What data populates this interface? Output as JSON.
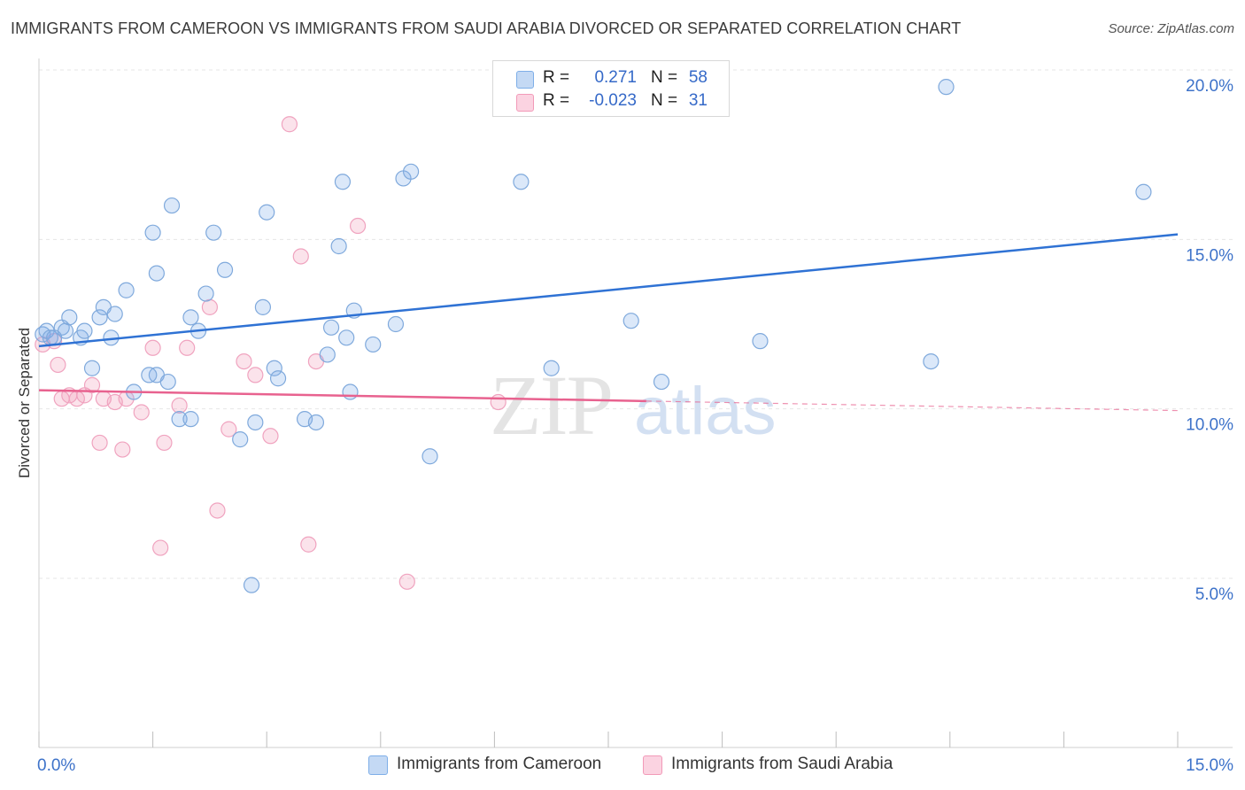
{
  "title": "IMMIGRANTS FROM CAMEROON VS IMMIGRANTS FROM SAUDI ARABIA DIVORCED OR SEPARATED CORRELATION CHART",
  "source": "Source: ZipAtlas.com",
  "watermark": {
    "zip": "ZIP",
    "atlas": "atlas"
  },
  "legend": {
    "r_label": "R =",
    "n_label": "N =",
    "rows": [
      {
        "name": "Immigrants from Cameroon",
        "r": "0.271",
        "n": "58",
        "color": "#7eaee8"
      },
      {
        "name": "Immigrants from Saudi Arabia",
        "r": "-0.023",
        "n": "31",
        "color": "#f29ab8"
      }
    ]
  },
  "chart_data": {
    "type": "scatter",
    "title": "IMMIGRANTS FROM CAMEROON VS IMMIGRANTS FROM SAUDI ARABIA DIVORCED OR SEPARATED CORRELATION CHART",
    "xlabel": "",
    "ylabel": "Divorced or Separated",
    "xlim": [
      0,
      15
    ],
    "ylim": [
      0,
      20.5
    ],
    "x_tick_labels": [
      "0.0%",
      "15.0%"
    ],
    "y_ticks": [
      5,
      10,
      15,
      20
    ],
    "y_tick_labels": [
      "5.0%",
      "10.0%",
      "15.0%",
      "20.0%"
    ],
    "grid": true,
    "legend_position": "top-center",
    "colors": {
      "blue": "#4a86d8",
      "pink": "#e8628f"
    },
    "series": [
      {
        "name": "Immigrants from Cameroon",
        "color": "#4a86d8",
        "trend": {
          "x": [
            0,
            15
          ],
          "y": [
            11.85,
            15.15
          ]
        },
        "points": [
          {
            "x": 0.05,
            "y": 12.2
          },
          {
            "x": 0.1,
            "y": 12.3
          },
          {
            "x": 0.15,
            "y": 12.1
          },
          {
            "x": 0.3,
            "y": 12.4
          },
          {
            "x": 0.4,
            "y": 12.7
          },
          {
            "x": 0.55,
            "y": 12.1
          },
          {
            "x": 0.6,
            "y": 12.3
          },
          {
            "x": 0.8,
            "y": 12.7
          },
          {
            "x": 0.85,
            "y": 13.0
          },
          {
            "x": 1.0,
            "y": 12.8
          },
          {
            "x": 0.95,
            "y": 12.1
          },
          {
            "x": 0.7,
            "y": 11.2
          },
          {
            "x": 1.15,
            "y": 13.5
          },
          {
            "x": 1.5,
            "y": 15.2
          },
          {
            "x": 1.55,
            "y": 14.0
          },
          {
            "x": 1.55,
            "y": 11.0
          },
          {
            "x": 1.45,
            "y": 11.0
          },
          {
            "x": 1.75,
            "y": 16.0
          },
          {
            "x": 1.7,
            "y": 10.8
          },
          {
            "x": 1.25,
            "y": 10.5
          },
          {
            "x": 2.0,
            "y": 12.7
          },
          {
            "x": 2.1,
            "y": 12.3
          },
          {
            "x": 2.2,
            "y": 13.4
          },
          {
            "x": 2.3,
            "y": 15.2
          },
          {
            "x": 2.45,
            "y": 14.1
          },
          {
            "x": 1.85,
            "y": 9.7
          },
          {
            "x": 2.0,
            "y": 9.7
          },
          {
            "x": 2.65,
            "y": 9.1
          },
          {
            "x": 2.95,
            "y": 13.0
          },
          {
            "x": 3.0,
            "y": 15.8
          },
          {
            "x": 3.1,
            "y": 11.2
          },
          {
            "x": 3.15,
            "y": 10.9
          },
          {
            "x": 2.85,
            "y": 9.6
          },
          {
            "x": 3.5,
            "y": 9.7
          },
          {
            "x": 3.65,
            "y": 9.6
          },
          {
            "x": 3.8,
            "y": 11.6
          },
          {
            "x": 3.85,
            "y": 12.4
          },
          {
            "x": 3.95,
            "y": 14.8
          },
          {
            "x": 4.05,
            "y": 12.1
          },
          {
            "x": 4.0,
            "y": 16.7
          },
          {
            "x": 4.1,
            "y": 10.5
          },
          {
            "x": 4.15,
            "y": 12.9
          },
          {
            "x": 4.4,
            "y": 11.9
          },
          {
            "x": 4.8,
            "y": 16.8
          },
          {
            "x": 4.9,
            "y": 17.0
          },
          {
            "x": 4.7,
            "y": 12.5
          },
          {
            "x": 5.15,
            "y": 8.6
          },
          {
            "x": 2.8,
            "y": 4.8
          },
          {
            "x": 6.35,
            "y": 16.7
          },
          {
            "x": 6.75,
            "y": 11.2
          },
          {
            "x": 7.8,
            "y": 12.6
          },
          {
            "x": 8.2,
            "y": 10.8
          },
          {
            "x": 9.5,
            "y": 12.0
          },
          {
            "x": 11.75,
            "y": 11.4
          },
          {
            "x": 11.95,
            "y": 19.5
          },
          {
            "x": 14.55,
            "y": 16.4
          },
          {
            "x": 0.2,
            "y": 12.1
          },
          {
            "x": 0.35,
            "y": 12.3
          }
        ]
      },
      {
        "name": "Immigrants from Saudi Arabia",
        "color": "#e8628f",
        "trend": {
          "x": [
            0,
            15
          ],
          "y": [
            10.55,
            9.95
          ]
        },
        "trend_solid_until_x": 8.0,
        "points": [
          {
            "x": 0.05,
            "y": 11.9
          },
          {
            "x": 0.2,
            "y": 12.0
          },
          {
            "x": 0.25,
            "y": 11.3
          },
          {
            "x": 0.3,
            "y": 10.3
          },
          {
            "x": 0.4,
            "y": 10.4
          },
          {
            "x": 0.5,
            "y": 10.3
          },
          {
            "x": 0.6,
            "y": 10.4
          },
          {
            "x": 0.7,
            "y": 10.7
          },
          {
            "x": 0.85,
            "y": 10.3
          },
          {
            "x": 1.0,
            "y": 10.2
          },
          {
            "x": 1.15,
            "y": 10.3
          },
          {
            "x": 0.8,
            "y": 9.0
          },
          {
            "x": 1.1,
            "y": 8.8
          },
          {
            "x": 1.35,
            "y": 9.9
          },
          {
            "x": 1.5,
            "y": 11.8
          },
          {
            "x": 1.65,
            "y": 9.0
          },
          {
            "x": 1.85,
            "y": 10.1
          },
          {
            "x": 1.95,
            "y": 11.8
          },
          {
            "x": 2.25,
            "y": 13.0
          },
          {
            "x": 2.35,
            "y": 7.0
          },
          {
            "x": 2.5,
            "y": 9.4
          },
          {
            "x": 2.7,
            "y": 11.4
          },
          {
            "x": 2.85,
            "y": 11.0
          },
          {
            "x": 3.05,
            "y": 9.2
          },
          {
            "x": 3.3,
            "y": 18.4
          },
          {
            "x": 3.45,
            "y": 14.5
          },
          {
            "x": 3.65,
            "y": 11.4
          },
          {
            "x": 4.2,
            "y": 15.4
          },
          {
            "x": 3.55,
            "y": 6.0
          },
          {
            "x": 1.6,
            "y": 5.9
          },
          {
            "x": 4.85,
            "y": 4.9
          }
        ],
        "extra_points": [
          {
            "x": 6.05,
            "y": 10.2
          }
        ]
      }
    ]
  }
}
